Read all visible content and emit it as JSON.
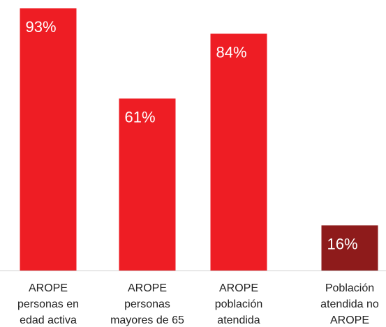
{
  "chart_data": {
    "type": "bar",
    "categories": [
      "AROPE\npersonas en\nedad activa",
      "AROPE\npersonas\nmayores de 65",
      "AROPE\npoblación\natendida",
      "Población\natendida no\nAROPE"
    ],
    "values": [
      93,
      61,
      84,
      16
    ],
    "value_labels": [
      "93%",
      "61%",
      "84%",
      "16%"
    ],
    "colors": [
      "#ee1d24",
      "#ee1d24",
      "#ee1d24",
      "#8e1b1b"
    ]
  }
}
